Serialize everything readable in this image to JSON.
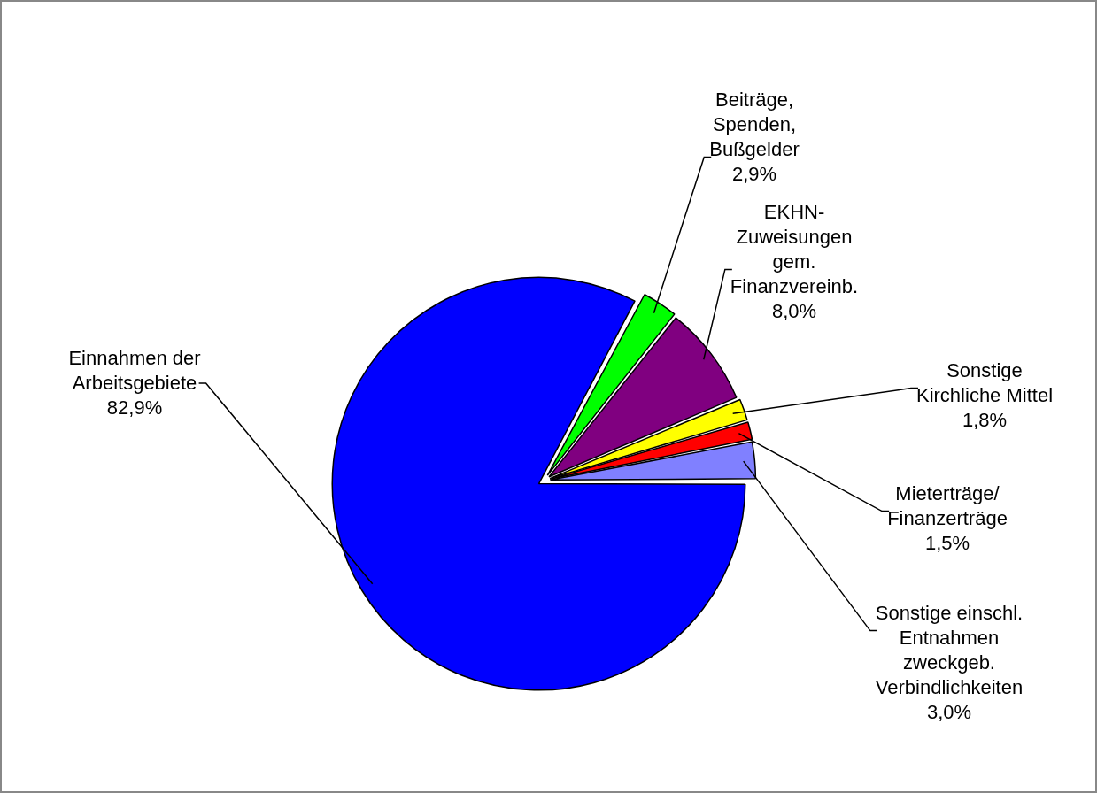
{
  "chart_data": {
    "type": "pie",
    "categories": [
      "Beiträge, Spenden, Bußgelder",
      "EKHN- Zuweisungen gem. Finanzvereinb.",
      "Sonstige Kirchliche Mittel",
      "Mieterträge/ Finanzerträge",
      "Sonstige einschl. Entnahmen zweckgeb. Verbindlichkeiten",
      "Einnahmen der Arbeitsgebiete"
    ],
    "values": [
      2.9,
      8.0,
      1.8,
      1.5,
      3.0,
      82.9
    ],
    "value_labels": [
      "2,9%",
      "8,0%",
      "1,8%",
      "1,5%",
      "3,0%",
      "82,9%"
    ],
    "colors": [
      "#00ff00",
      "#800080",
      "#ffff00",
      "#ff0000",
      "#8080ff",
      "#0000ff"
    ],
    "legend": false
  }
}
